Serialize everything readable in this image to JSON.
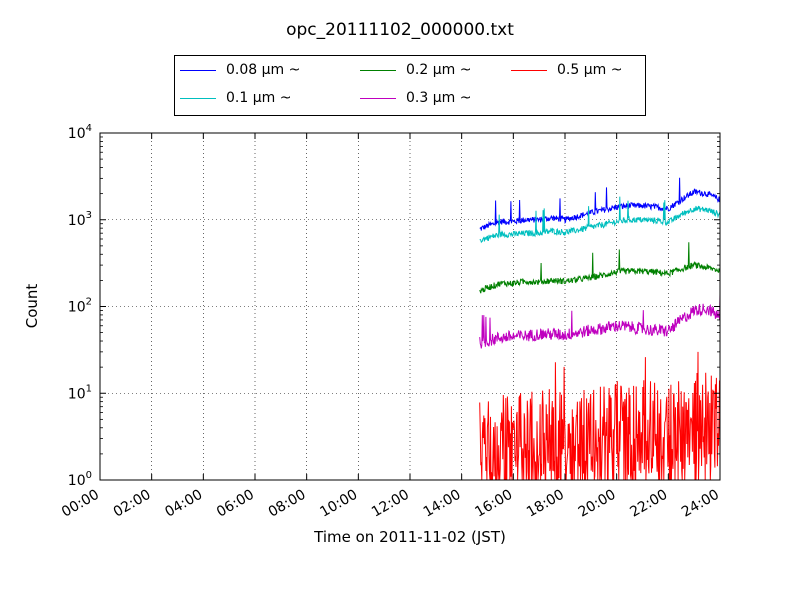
{
  "chart_data": {
    "type": "line",
    "title": "opc_20111102_000000.txt",
    "xlabel": "Time on 2011-11-02 (JST)",
    "ylabel": "Count",
    "x_unit": "hours",
    "xlim": [
      0,
      24
    ],
    "ylim": [
      1,
      10000
    ],
    "yscale": "log",
    "grid": true,
    "legend_position": "top",
    "x_ticks": [
      {
        "value": 0,
        "label": "00:00"
      },
      {
        "value": 2,
        "label": "02:00"
      },
      {
        "value": 4,
        "label": "04:00"
      },
      {
        "value": 6,
        "label": "06:00"
      },
      {
        "value": 8,
        "label": "08:00"
      },
      {
        "value": 10,
        "label": "10:00"
      },
      {
        "value": 12,
        "label": "12:00"
      },
      {
        "value": 14,
        "label": "14:00"
      },
      {
        "value": 16,
        "label": "16:00"
      },
      {
        "value": 18,
        "label": "18:00"
      },
      {
        "value": 20,
        "label": "20:00"
      },
      {
        "value": 22,
        "label": "22:00"
      },
      {
        "value": 24,
        "label": "24:00"
      }
    ],
    "y_ticks": [
      {
        "value": 1,
        "base": "10",
        "exp": "0"
      },
      {
        "value": 10,
        "base": "10",
        "exp": "1"
      },
      {
        "value": 100,
        "base": "10",
        "exp": "2"
      },
      {
        "value": 1000,
        "base": "10",
        "exp": "3"
      },
      {
        "value": 10000,
        "base": "10",
        "exp": "4"
      }
    ],
    "x": [
      14.7,
      15.0,
      15.5,
      16.0,
      16.5,
      17.0,
      17.5,
      18.0,
      18.5,
      19.0,
      19.5,
      20.0,
      20.5,
      21.0,
      21.5,
      22.0,
      22.5,
      23.0,
      23.5,
      24.0
    ],
    "series": [
      {
        "name": "0.08 μm ~",
        "color": "#0000ff",
        "values": [
          780,
          850,
          950,
          950,
          1000,
          1000,
          1050,
          1000,
          1100,
          1200,
          1300,
          1400,
          1450,
          1450,
          1400,
          1350,
          1700,
          2100,
          2000,
          1700
        ]
      },
      {
        "name": "0.1 μm ~",
        "color": "#00bfbf",
        "values": [
          580,
          620,
          680,
          680,
          700,
          700,
          740,
          720,
          760,
          820,
          880,
          950,
          1000,
          1000,
          980,
          930,
          1150,
          1350,
          1300,
          1150
        ]
      },
      {
        "name": "0.2 μm ~",
        "color": "#008000",
        "values": [
          150,
          165,
          185,
          185,
          195,
          190,
          200,
          195,
          205,
          215,
          230,
          250,
          255,
          255,
          250,
          240,
          270,
          300,
          280,
          260
        ]
      },
      {
        "name": "0.3 μm ~",
        "color": "#bf00bf",
        "values": [
          38,
          40,
          44,
          45,
          46,
          48,
          48,
          47,
          50,
          53,
          56,
          60,
          58,
          55,
          53,
          52,
          70,
          90,
          95,
          75
        ]
      },
      {
        "name": "0.5 μm ~",
        "color": "#ff0000",
        "values": [
          2.5,
          2.6,
          2.8,
          2.8,
          3.0,
          3.0,
          3.2,
          3.0,
          3.2,
          3.5,
          3.8,
          4.0,
          4.0,
          4.0,
          4.0,
          4.0,
          4.5,
          5.0,
          5.0,
          4.5
        ]
      }
    ]
  }
}
